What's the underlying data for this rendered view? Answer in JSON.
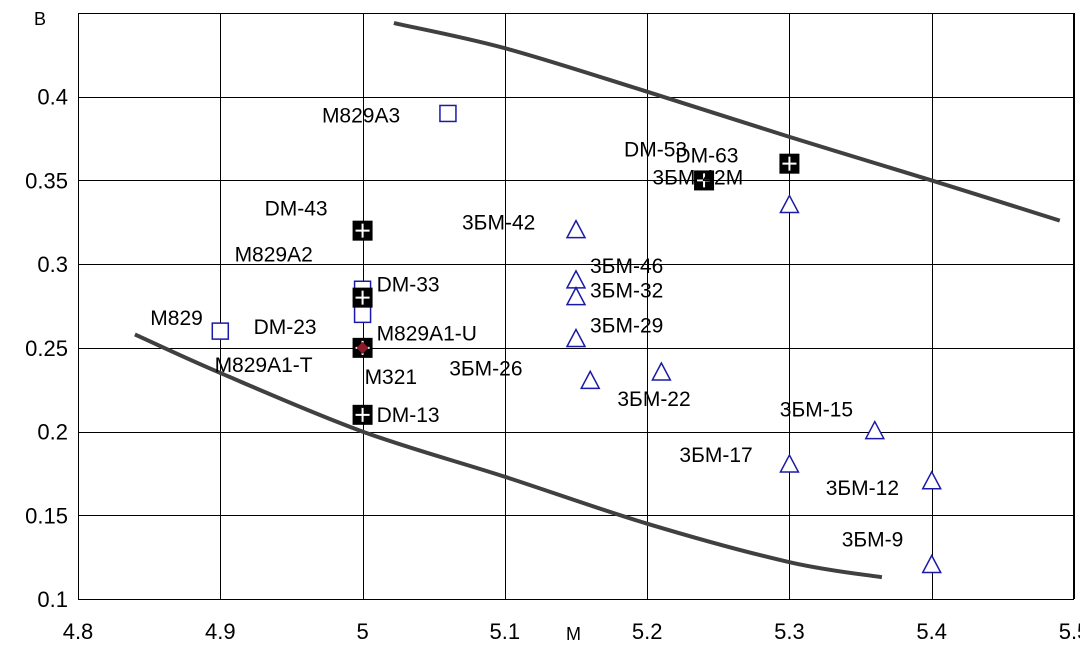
{
  "chart_data": {
    "type": "scatter",
    "xlabel": "M",
    "ylabel": "B",
    "xlim": [
      4.8,
      5.5
    ],
    "ylim": [
      0.1,
      0.45
    ],
    "x_ticks": [
      "4.8",
      "4.9",
      "5",
      "5.1",
      "5.2",
      "5.3",
      "5.4",
      "5.5"
    ],
    "y_ticks": [
      "0.1",
      "0.15",
      "0.2",
      "0.25",
      "0.3",
      "0.35",
      "0.4"
    ],
    "grid": true,
    "colors": {
      "square_open": "#1a1aa6",
      "triangle_open": "#1a1aa6",
      "square_filled": "#000000",
      "m321_marker": "#8b1a2b",
      "curve": "#404040"
    },
    "series": [
      {
        "marker": "square-open",
        "points": [
          {
            "label": "M829A3",
            "x": 5.06,
            "y": 0.39
          },
          {
            "label": "M829A2",
            "x": 5.0,
            "y": 0.285
          },
          {
            "label": "M829",
            "x": 4.9,
            "y": 0.26
          },
          {
            "label": "M829A1-U",
            "x": 5.0,
            "y": 0.27
          },
          {
            "label": "M829A1-T",
            "x": 5.0,
            "y": 0.25
          }
        ]
      },
      {
        "marker": "square-filled",
        "points": [
          {
            "label": "DM-63",
            "x": 5.3,
            "y": 0.36
          },
          {
            "label": "DM-53",
            "x": 5.24,
            "y": 0.35
          },
          {
            "label": "DM-43",
            "x": 5.0,
            "y": 0.32
          },
          {
            "label": "DM-33",
            "x": 5.0,
            "y": 0.28
          },
          {
            "label": "DM-23",
            "x": 5.0,
            "y": 0.25
          },
          {
            "label": "DM-13",
            "x": 5.0,
            "y": 0.21
          }
        ]
      },
      {
        "marker": "diamond-filled",
        "points": [
          {
            "label": "M321",
            "x": 5.0,
            "y": 0.25
          }
        ]
      },
      {
        "marker": "triangle-open",
        "points": [
          {
            "label": "3БМ-42М",
            "x": 5.3,
            "y": 0.335
          },
          {
            "label": "3БМ-42",
            "x": 5.15,
            "y": 0.32
          },
          {
            "label": "3БМ-46",
            "x": 5.15,
            "y": 0.29
          },
          {
            "label": "3БМ-32",
            "x": 5.15,
            "y": 0.28
          },
          {
            "label": "3БМ-29",
            "x": 5.15,
            "y": 0.255
          },
          {
            "label": "3БМ-26",
            "x": 5.16,
            "y": 0.23
          },
          {
            "label": "3БМ-22",
            "x": 5.21,
            "y": 0.235
          },
          {
            "label": "3БМ-15",
            "x": 5.36,
            "y": 0.2
          },
          {
            "label": "3БМ-17",
            "x": 5.3,
            "y": 0.18
          },
          {
            "label": "3БМ-12",
            "x": 5.4,
            "y": 0.17
          },
          {
            "label": "3БМ-9",
            "x": 5.4,
            "y": 0.12
          }
        ]
      }
    ],
    "curves": [
      {
        "points": [
          [
            5.022,
            0.444
          ],
          [
            5.1,
            0.429
          ],
          [
            5.2,
            0.403
          ],
          [
            5.3,
            0.376
          ],
          [
            5.4,
            0.35
          ],
          [
            5.49,
            0.326
          ]
        ]
      },
      {
        "points": [
          [
            4.84,
            0.258
          ],
          [
            4.9,
            0.235
          ],
          [
            5.0,
            0.2
          ],
          [
            5.1,
            0.173
          ],
          [
            5.2,
            0.145
          ],
          [
            5.3,
            0.122
          ],
          [
            5.365,
            0.113
          ]
        ]
      }
    ]
  }
}
